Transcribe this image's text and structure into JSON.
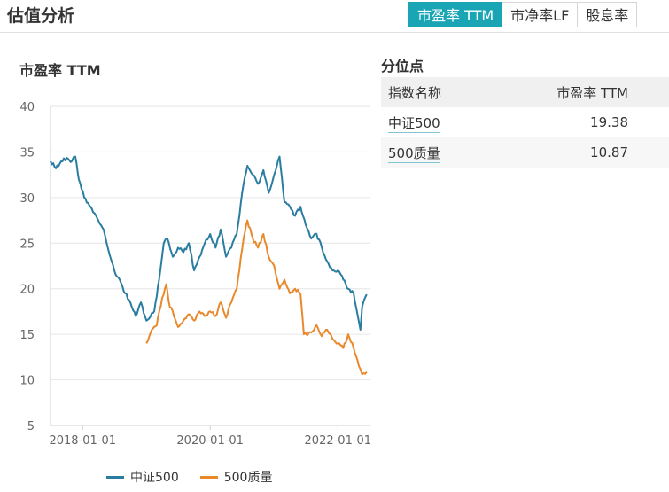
{
  "header": {
    "title": "估值分析",
    "tabs": [
      {
        "label": "市盈率 TTM",
        "active": true
      },
      {
        "label": "市净率LF",
        "active": false
      },
      {
        "label": "股息率",
        "active": false
      }
    ]
  },
  "percentile": {
    "title": "分位点",
    "headers": [
      "指数名称",
      "市盈率 TTM"
    ],
    "rows": [
      {
        "name": "中证500",
        "value": "19.38"
      },
      {
        "name": "500质量",
        "value": "10.87"
      }
    ]
  },
  "colors": {
    "accent": "#1aa5b5",
    "series1": "#2a7da0",
    "series2": "#e8892c"
  },
  "chart_data": {
    "type": "line",
    "title": "市盈率 TTM",
    "xlabel": "",
    "ylabel": "",
    "ylim": [
      5,
      40
    ],
    "yticks": [
      5,
      10,
      15,
      20,
      25,
      30,
      35,
      40
    ],
    "xlim": [
      "2017-07-01",
      "2022-07-01"
    ],
    "xticks": [
      "2018-01-01",
      "2020-01-01",
      "2022-01-01"
    ],
    "grid": true,
    "legend": "bottom",
    "series": [
      {
        "name": "中证500",
        "color": "#2a7da0",
        "points": [
          [
            "2017-07-01",
            34.0
          ],
          [
            "2017-08-01",
            33.2
          ],
          [
            "2017-09-15",
            34.3
          ],
          [
            "2017-11-01",
            34.0
          ],
          [
            "2017-11-20",
            34.5
          ],
          [
            "2017-12-10",
            32.0
          ],
          [
            "2018-01-10",
            30.0
          ],
          [
            "2018-02-15",
            29.0
          ],
          [
            "2018-04-01",
            27.5
          ],
          [
            "2018-05-01",
            26.5
          ],
          [
            "2018-06-01",
            24.0
          ],
          [
            "2018-07-01",
            22.0
          ],
          [
            "2018-08-01",
            21.0
          ],
          [
            "2018-09-01",
            19.5
          ],
          [
            "2018-10-01",
            18.5
          ],
          [
            "2018-11-01",
            17.0
          ],
          [
            "2018-12-01",
            18.5
          ],
          [
            "2019-01-01",
            16.5
          ],
          [
            "2019-02-15",
            17.5
          ],
          [
            "2019-03-15",
            21.0
          ],
          [
            "2019-04-10",
            25.0
          ],
          [
            "2019-05-01",
            25.5
          ],
          [
            "2019-06-01",
            23.5
          ],
          [
            "2019-07-01",
            24.5
          ],
          [
            "2019-08-01",
            24.0
          ],
          [
            "2019-09-01",
            25.0
          ],
          [
            "2019-10-01",
            22.0
          ],
          [
            "2019-11-01",
            23.5
          ],
          [
            "2019-12-01",
            25.0
          ],
          [
            "2020-01-01",
            26.0
          ],
          [
            "2020-02-01",
            24.5
          ],
          [
            "2020-03-01",
            26.5
          ],
          [
            "2020-04-01",
            23.5
          ],
          [
            "2020-05-01",
            24.5
          ],
          [
            "2020-06-01",
            26.0
          ],
          [
            "2020-07-10",
            31.5
          ],
          [
            "2020-08-01",
            33.5
          ],
          [
            "2020-09-01",
            32.5
          ],
          [
            "2020-10-01",
            31.5
          ],
          [
            "2020-11-01",
            33.0
          ],
          [
            "2020-12-01",
            30.5
          ],
          [
            "2021-01-01",
            32.5
          ],
          [
            "2021-02-01",
            34.5
          ],
          [
            "2021-03-01",
            29.5
          ],
          [
            "2021-04-01",
            29.0
          ],
          [
            "2021-05-01",
            28.0
          ],
          [
            "2021-06-01",
            29.0
          ],
          [
            "2021-07-01",
            27.0
          ],
          [
            "2021-08-01",
            25.5
          ],
          [
            "2021-09-01",
            26.0
          ],
          [
            "2021-10-01",
            24.5
          ],
          [
            "2021-11-01",
            23.0
          ],
          [
            "2021-12-01",
            22.0
          ],
          [
            "2022-01-01",
            22.0
          ],
          [
            "2022-02-01",
            21.0
          ],
          [
            "2022-03-01",
            20.0
          ],
          [
            "2022-04-01",
            19.5
          ],
          [
            "2022-04-25",
            17.0
          ],
          [
            "2022-05-10",
            15.5
          ],
          [
            "2022-05-20",
            18.0
          ],
          [
            "2022-06-15",
            19.38
          ]
        ]
      },
      {
        "name": "500质量",
        "color": "#e8892c",
        "points": [
          [
            "2019-01-01",
            14.0
          ],
          [
            "2019-02-01",
            15.5
          ],
          [
            "2019-03-01",
            16.0
          ],
          [
            "2019-04-01",
            19.0
          ],
          [
            "2019-04-25",
            20.5
          ],
          [
            "2019-05-15",
            18.0
          ],
          [
            "2019-06-01",
            17.5
          ],
          [
            "2019-07-01",
            15.8
          ],
          [
            "2019-08-01",
            16.5
          ],
          [
            "2019-09-01",
            17.2
          ],
          [
            "2019-10-01",
            16.5
          ],
          [
            "2019-11-01",
            17.5
          ],
          [
            "2019-12-01",
            17.0
          ],
          [
            "2020-01-01",
            17.5
          ],
          [
            "2020-02-01",
            17.0
          ],
          [
            "2020-03-01",
            18.5
          ],
          [
            "2020-04-01",
            16.8
          ],
          [
            "2020-05-01",
            18.5
          ],
          [
            "2020-06-01",
            20.0
          ],
          [
            "2020-07-10",
            25.5
          ],
          [
            "2020-08-01",
            27.5
          ],
          [
            "2020-09-01",
            25.5
          ],
          [
            "2020-10-01",
            24.5
          ],
          [
            "2020-11-01",
            26.0
          ],
          [
            "2020-12-01",
            23.5
          ],
          [
            "2021-01-01",
            22.5
          ],
          [
            "2021-02-01",
            20.0
          ],
          [
            "2021-03-01",
            21.0
          ],
          [
            "2021-04-01",
            19.5
          ],
          [
            "2021-05-01",
            20.0
          ],
          [
            "2021-06-01",
            19.5
          ],
          [
            "2021-06-20",
            15.0
          ],
          [
            "2021-08-01",
            15.2
          ],
          [
            "2021-09-01",
            16.0
          ],
          [
            "2021-10-01",
            14.8
          ],
          [
            "2021-11-01",
            15.5
          ],
          [
            "2021-12-01",
            14.5
          ],
          [
            "2022-01-01",
            14.0
          ],
          [
            "2022-02-01",
            13.5
          ],
          [
            "2022-03-01",
            15.0
          ],
          [
            "2022-04-01",
            13.5
          ],
          [
            "2022-05-01",
            11.5
          ],
          [
            "2022-05-20",
            10.6
          ],
          [
            "2022-06-15",
            10.87
          ]
        ]
      }
    ]
  }
}
